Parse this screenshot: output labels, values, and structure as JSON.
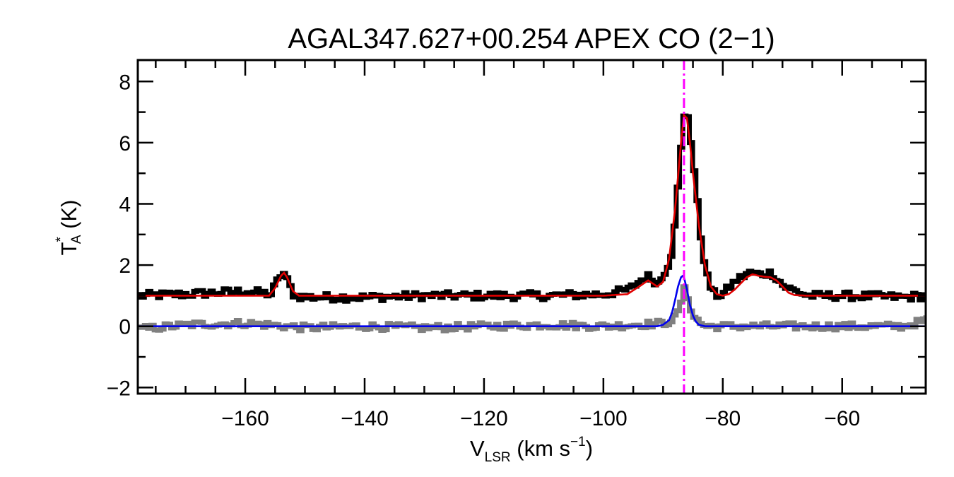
{
  "chart_data": {
    "type": "line",
    "title": "AGAL347.627+00.254  APEX CO (2−1)",
    "xlabel": {
      "main": "V",
      "sub": "LSR",
      "rest": " (km s",
      "sup": "−1",
      "close": ")"
    },
    "ylabel": {
      "main": "T",
      "sup": "*",
      "sub": "A",
      "rest": " (K)"
    },
    "xlim": [
      -178,
      -46
    ],
    "ylim": [
      -2.2,
      8.7
    ],
    "x_ticks": [
      -160,
      -140,
      -120,
      -100,
      -80,
      -60
    ],
    "x_tick_labels": [
      "−160",
      "−140",
      "−120",
      "−100",
      "−80",
      "−60"
    ],
    "y_ticks": [
      -2,
      0,
      2,
      4,
      6,
      8
    ],
    "y_tick_labels": [
      "−2",
      "0",
      "2",
      "4",
      "6",
      "8"
    ],
    "vline_x": -86.5,
    "grid": false,
    "colors": {
      "observed": "#000000",
      "fit": "#e00000",
      "residual": "#808080",
      "component": "#0000ee",
      "vline": "#ff00ff"
    },
    "series": [
      {
        "role": "observed spectrum (offset +1 K)",
        "color": "#000000",
        "style": "histogram",
        "x": [
          -178,
          -170,
          -165,
          -160,
          -156,
          -154,
          -152,
          -150,
          -140,
          -130,
          -120,
          -110,
          -100,
          -96,
          -93,
          -91,
          -89,
          -88,
          -87,
          -86.5,
          -86,
          -85,
          -84,
          -83,
          -82,
          -81,
          -80,
          -78,
          -76,
          -74,
          -72,
          -70,
          -66,
          -60,
          -50,
          -46
        ],
        "y": [
          1.0,
          1.05,
          1.1,
          1.15,
          1.05,
          1.8,
          1.0,
          0.95,
          0.95,
          1.0,
          1.0,
          1.0,
          1.05,
          1.2,
          1.65,
          1.4,
          2.2,
          4.0,
          6.4,
          7.1,
          6.8,
          5.0,
          3.0,
          1.7,
          1.1,
          1.0,
          1.1,
          1.5,
          1.75,
          1.7,
          1.75,
          1.3,
          1.0,
          1.0,
          0.95,
          1.0
        ]
      },
      {
        "role": "fit (offset +1 K)",
        "color": "#e00000",
        "style": "line",
        "x": [
          -178,
          -156,
          -155,
          -154,
          -153.5,
          -153,
          -152,
          -151,
          -100,
          -96,
          -94,
          -92.5,
          -91,
          -90,
          -89,
          -88,
          -87.5,
          -87,
          -86.5,
          -86,
          -85.5,
          -85,
          -84,
          -83,
          -82,
          -81,
          -80,
          -79,
          -78,
          -76,
          -75,
          -74,
          -73,
          -72,
          -71,
          -70,
          -69,
          -68,
          -66,
          -46
        ],
        "y": [
          1.0,
          1.0,
          1.25,
          1.65,
          1.75,
          1.6,
          1.15,
          1.0,
          1.0,
          1.05,
          1.3,
          1.5,
          1.3,
          1.45,
          2.2,
          3.8,
          4.9,
          6.0,
          6.9,
          6.8,
          6.0,
          5.0,
          3.3,
          2.0,
          1.3,
          1.05,
          1.0,
          1.05,
          1.2,
          1.6,
          1.7,
          1.65,
          1.62,
          1.6,
          1.5,
          1.3,
          1.1,
          1.02,
          1.0,
          1.0
        ]
      },
      {
        "role": "residual",
        "color": "#808080",
        "style": "histogram",
        "x": [
          -178,
          -170,
          -160,
          -150,
          -140,
          -130,
          -120,
          -110,
          -100,
          -90,
          -88,
          -87,
          -86.5,
          -86,
          -85,
          -84,
          -83,
          -80,
          -70,
          -60,
          -50,
          -46
        ],
        "y": [
          -0.1,
          0.05,
          0.1,
          -0.05,
          0.0,
          -0.05,
          0.0,
          0.05,
          0.0,
          0.1,
          0.3,
          1.0,
          1.3,
          0.8,
          0.3,
          0.1,
          0.0,
          0.0,
          0.0,
          0.0,
          0.0,
          0.2
        ]
      },
      {
        "role": "single Gaussian component",
        "color": "#0000ee",
        "style": "line",
        "x": [
          -178,
          -91,
          -90,
          -89,
          -88.5,
          -88,
          -87.5,
          -87,
          -86.8,
          -86.5,
          -86,
          -85.5,
          -85,
          -84.5,
          -84,
          -83,
          -46
        ],
        "y": [
          0.0,
          0.0,
          0.05,
          0.2,
          0.45,
          0.85,
          1.3,
          1.6,
          1.65,
          1.6,
          1.2,
          0.7,
          0.35,
          0.15,
          0.05,
          0.0,
          0.0
        ]
      }
    ]
  }
}
